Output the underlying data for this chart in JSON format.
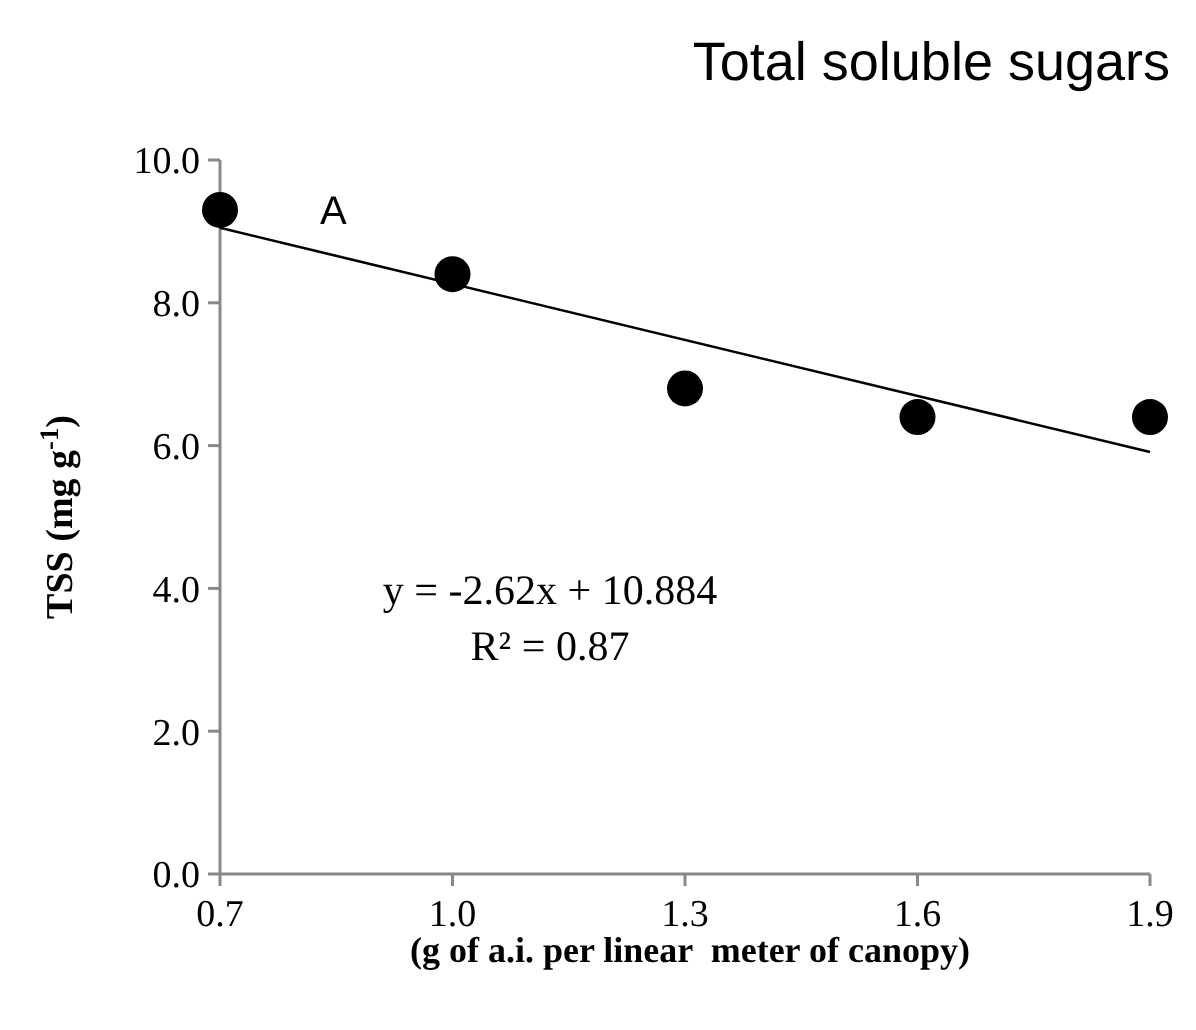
{
  "chart_data": {
    "type": "scatter",
    "title": "Total soluble sugars",
    "xlabel": "(g of a.i. per linear  meter of canopy)",
    "ylabel": "TSS (mg g$^{-1}$)",
    "xlim": [
      0.7,
      1.9
    ],
    "xticks": [
      {
        "value": 0.7,
        "label": "0.7"
      },
      {
        "value": 1,
        "label": "1.0"
      },
      {
        "value": 1.3,
        "label": "1.3"
      },
      {
        "value": 1.6,
        "label": "1.6"
      },
      {
        "value": 1.9,
        "label": "1.9"
      }
    ],
    "ylim": [
      0,
      10
    ],
    "yticks": [
      {
        "value": 0,
        "label": "0.0"
      },
      {
        "value": 2,
        "label": "2.0"
      },
      {
        "value": 4,
        "label": "4.0"
      },
      {
        "value": 6,
        "label": "6.0"
      },
      {
        "value": 8,
        "label": "8.0"
      },
      {
        "value": 10,
        "label": "10.0"
      }
    ],
    "grid": false,
    "series": [
      {
        "color": "#000000",
        "marker": "circle",
        "x": [
          0.7,
          1.0,
          1.3,
          1.6,
          1.9
        ],
        "values": [
          9.3,
          8.4,
          6.8,
          6.4,
          6.4
        ]
      },
      {
        "type": "line",
        "color": "#000000",
        "x": [
          0.7,
          1.9
        ],
        "values": [
          9.05,
          5.91
        ],
        "marker": "none",
        "line_style": "solid"
      }
    ],
    "annotations": [
      "A",
      "y = -2.62x + 10.884",
      "R² = 0.87"
    ]
  }
}
